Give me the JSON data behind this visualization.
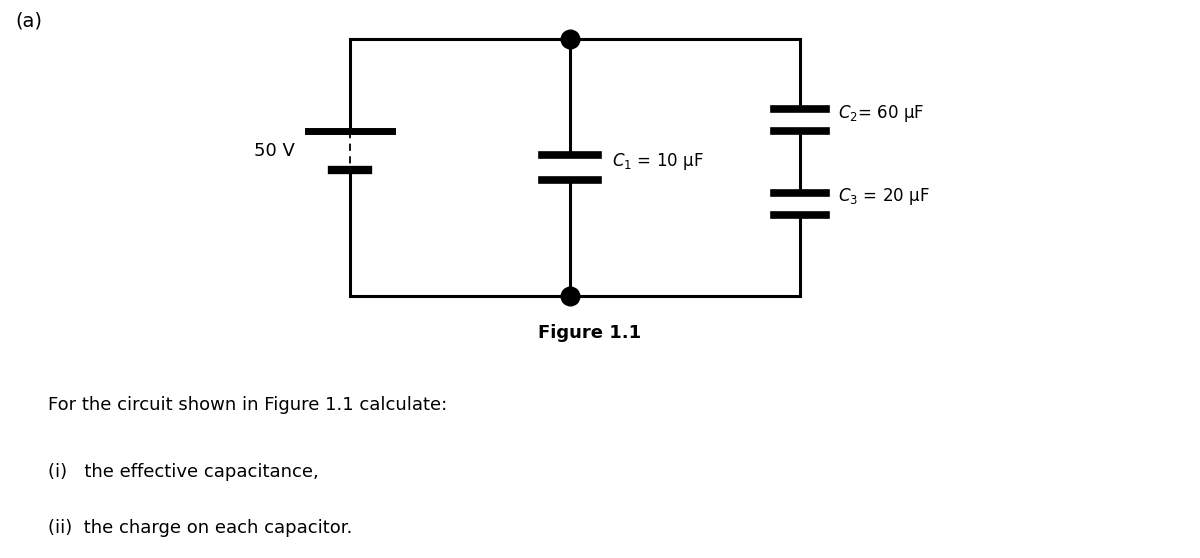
{
  "fig_width": 12.0,
  "fig_height": 5.58,
  "bg_color": "#ffffff",
  "label_a": "(a)",
  "voltage_label": "50 V",
  "figure_caption": "Figure 1.1",
  "c1_label": "$C_1$ = 10 μF",
  "c2_label": "$C_2$= 60 μF",
  "c3_label": "$C_3$ = 20 μF",
  "text_line1": "For the circuit shown in Figure 1.1 calculate:",
  "text_line2": "(i)   the effective capacitance,",
  "text_line3": "(ii)  the charge on each capacitor.",
  "line_color": "#000000",
  "line_width": 2.2,
  "dot_size": 180,
  "font_size_label": 14,
  "font_size_text": 13,
  "font_size_cap": 12
}
